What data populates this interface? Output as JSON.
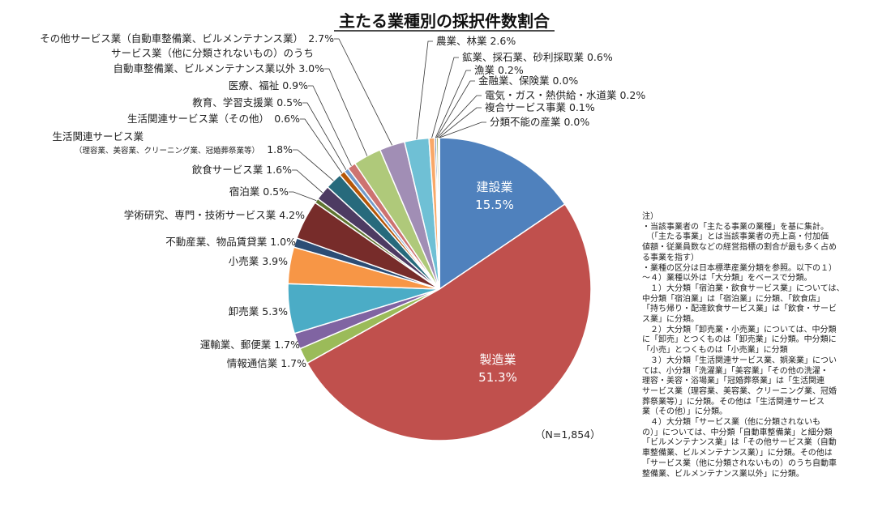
{
  "chart_data": {
    "type": "pie",
    "title": "主たる業種別の採択件数割合",
    "sample_note": "（N=1,854）",
    "start_angle_deg": 0,
    "direction": "clockwise",
    "slices": [
      {
        "name": "建設業",
        "value": 15.5,
        "label": "15.5%",
        "color": "#4F81BD"
      },
      {
        "name": "製造業",
        "value": 51.3,
        "label": "51.3%",
        "color": "#C0504D"
      },
      {
        "name": "情報通信業",
        "value": 1.7,
        "label": "1.7%",
        "color": "#9BBB59"
      },
      {
        "name": "運輸業、郵便業",
        "value": 1.7,
        "label": "1.7%",
        "color": "#8064A2"
      },
      {
        "name": "卸売業",
        "value": 5.3,
        "label": "5.3%",
        "color": "#4BACC6"
      },
      {
        "name": "小売業",
        "value": 3.9,
        "label": "3.9%",
        "color": "#F79646"
      },
      {
        "name": "不動産業、物品賃貸業",
        "value": 1.0,
        "label": "1.0%",
        "color": "#2C4D75"
      },
      {
        "name": "学術研究、専門・技術サービス業",
        "value": 4.2,
        "label": "4.2%",
        "color": "#772C2A"
      },
      {
        "name": "宿泊業",
        "value": 0.5,
        "label": "0.5%",
        "color": "#5F7530"
      },
      {
        "name": "飲食サービス業",
        "value": 1.6,
        "label": "1.6%",
        "color": "#4D3B62"
      },
      {
        "name": "生活関連サービス業（理容業、美容業、クリーニング業、冠婚葬祭業等）",
        "value": 1.8,
        "label": "1.8%",
        "color": "#276A7C"
      },
      {
        "name": "生活関連サービス業（その他）",
        "value": 0.6,
        "label": "0.6%",
        "color": "#B65708"
      },
      {
        "name": "教育、学習支援業",
        "value": 0.5,
        "label": "0.5%",
        "color": "#729ACA"
      },
      {
        "name": "医療、福祉",
        "value": 0.9,
        "label": "0.9%",
        "color": "#CD7371"
      },
      {
        "name": "サービス業（他に分類されないもの）のうち自動車整備業、ビルメンテナンス業以外",
        "value": 3.0,
        "label": "3.0%",
        "color": "#AFC97A"
      },
      {
        "name": "その他サービス業（自動車整備業、ビルメンテナンス業）",
        "value": 2.7,
        "label": "2.7%",
        "color": "#A18EB5"
      },
      {
        "name": "農業、林業",
        "value": 2.6,
        "label": "2.6%",
        "color": "#6FC0D5"
      },
      {
        "name": "鉱業、採石業、砂利採取業",
        "value": 0.6,
        "label": "0.6%",
        "color": "#F9A868"
      },
      {
        "name": "漁業",
        "value": 0.2,
        "label": "0.2%",
        "color": "#3A6398"
      },
      {
        "name": "金融業、保険業",
        "value": 0.0,
        "label": "0.0%",
        "color": "#9A3B38"
      },
      {
        "name": "電気・ガス・熱供給・水道業",
        "value": 0.2,
        "label": "0.2%",
        "color": "#7E9A45"
      },
      {
        "name": "複合サービス事業",
        "value": 0.1,
        "label": "0.1%",
        "color": "#654E82"
      },
      {
        "name": "分類不能の産業",
        "value": 0.0,
        "label": "0.0%",
        "color": "#3893A8"
      }
    ],
    "outside_labels": [
      {
        "lines": [
          "その他サービス業（自動車整備業、ビルメンテナンス業）",
          "2.7%"
        ]
      },
      {
        "lines": [
          "サービス業（他に分類されないもの）のうち"
        ]
      },
      {
        "lines": [
          "自動車整備業、ビルメンテナンス業以外 3.0%"
        ]
      },
      {
        "lines": [
          "医療、福祉 0.9%"
        ]
      },
      {
        "lines": [
          "教育、学習支援業 0.5%"
        ]
      },
      {
        "lines": [
          "生活関連サービス業（その他）　0.6%"
        ]
      },
      {
        "lines": [
          "生活関連サービス業"
        ]
      },
      {
        "lines": [
          "（理容業、美容業、クリーニング業、冠婚葬祭業等）"
        ],
        "small": true
      },
      {
        "lines": [
          "1.8%"
        ]
      },
      {
        "lines": [
          "飲食サービス業 1.6%"
        ]
      },
      {
        "lines": [
          "宿泊業 0.5%"
        ]
      },
      {
        "lines": [
          "学術研究、専門・技術サービス業 4.2%"
        ]
      },
      {
        "lines": [
          "不動産業、物品賃貸業 1.0%"
        ]
      },
      {
        "lines": [
          "小売業 3.9%"
        ]
      },
      {
        "lines": [
          "卸売業 5.3%"
        ]
      },
      {
        "lines": [
          "運輸業、郵便業 1.7%"
        ]
      },
      {
        "lines": [
          "情報通信業 1.7%"
        ]
      },
      {
        "lines": [
          "農業、林業 2.6%"
        ]
      },
      {
        "lines": [
          "鉱業、採石業、砂利採取業 0.6%"
        ]
      },
      {
        "lines": [
          "漁業 0.2%"
        ]
      },
      {
        "lines": [
          "金融業、保険業 0.0%"
        ]
      },
      {
        "lines": [
          "電気・ガス・熱供給・水道業 0.2%"
        ]
      },
      {
        "lines": [
          "複合サービス事業 0.1%"
        ]
      },
      {
        "lines": [
          "分類不能の産業 0.0%"
        ]
      }
    ]
  },
  "note": "注）\n・当該事業者の「主たる事業の業種」を基に集計。\n　（「主たる事業」とは当該事業者の売上高・付加価\n値額・従業員数などの経営指標の割合が最も多く占め\nる事業を指す）\n・業種の区分は日本標準産業分類を参照。以下の１）\n～４）業種以外は「大分類」をベースで分類。\n　１）大分類「宿泊業・飲食サービス業」については、\n中分類「宿泊業」は「宿泊業」に分類、「飲食店」\n「持ち帰り・配達飲食サービス業」は「飲食・サービ\nス業」に分類。\n　２）大分類「卸売業・小売業」については、中分類\nに「卸売」とつくものは「卸売業」に分類。中分類に\n「小売」とつくものは「小売業」に分類\n　３）大分類「生活関連サービス業、娯楽業」につい\nては、小分類「洗濯業」「美容業」「その他の洗濯・\n理容・美容・浴場業」「冠婚葬祭業」は「生活関連\nサービス業（理容業、美容業、クリーニング業、冠婚\n葬祭業等）」に分類。その他は「生活関連サービス\n業（その他）」に分類。\n　４）大分類「サービス業（他に分類されないも\nの）」については、中分類「自動車整備業」と細分類\n「ビルメンテナンス業」は「その他サービス業（自動\n車整備業、ビルメンテナンス業）」に分類。その他は\n「サービス業（他に分類されないもの）のうち自動車\n整備業、ビルメンテナンス業以外」に分類。"
}
